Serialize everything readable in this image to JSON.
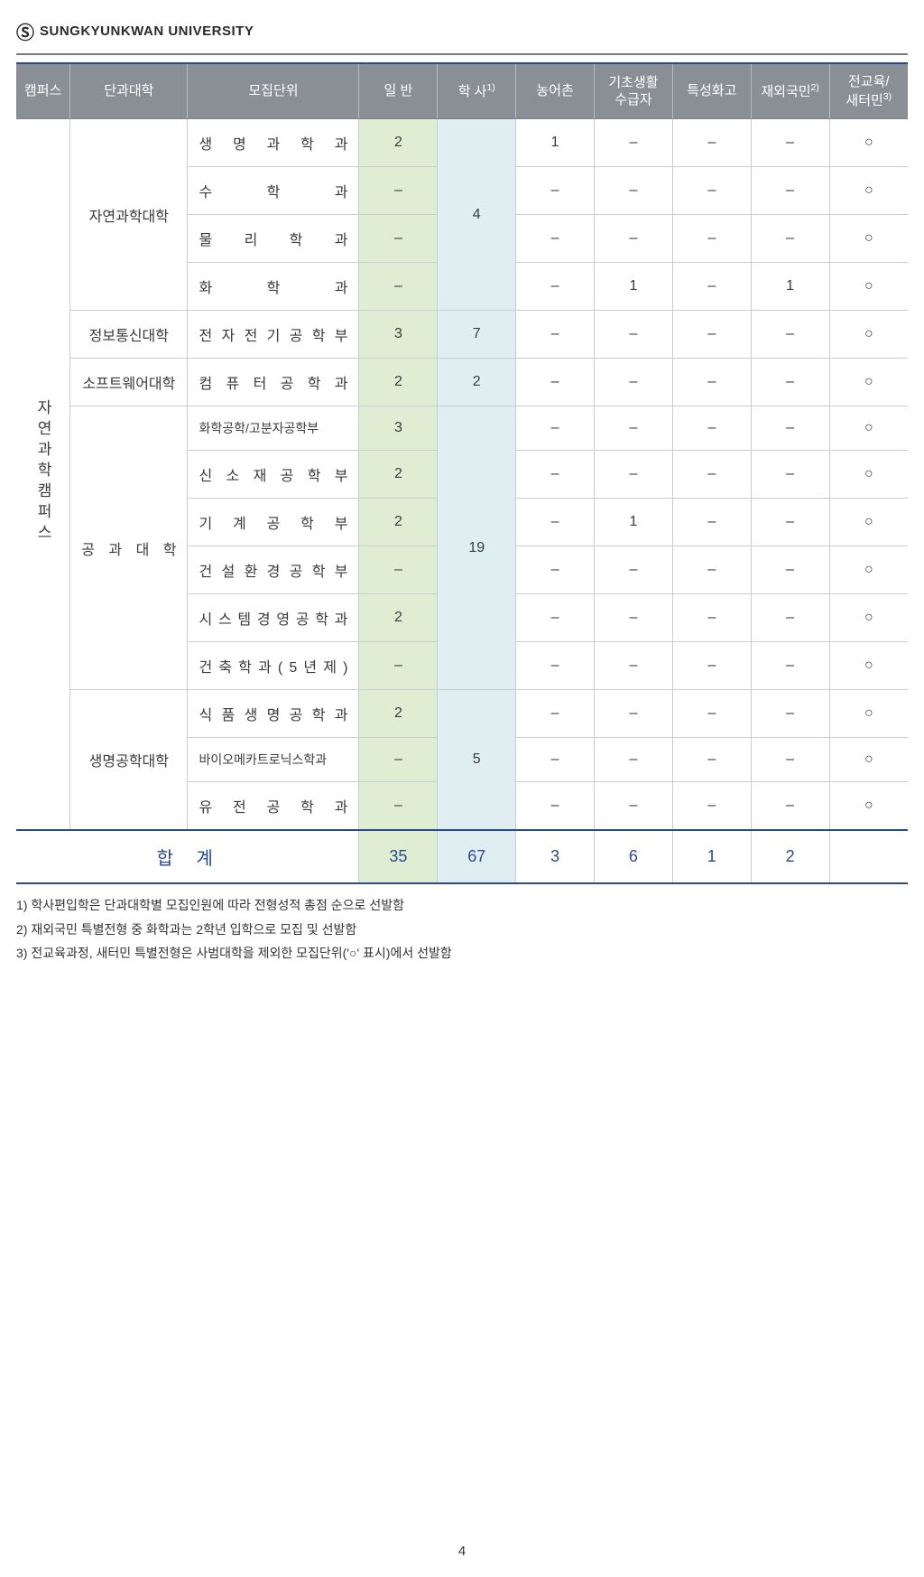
{
  "header": {
    "logo_glyph": "Ⓢ",
    "university": "SUNGKYUNKWAN UNIVERSITY"
  },
  "columns": {
    "campus": "캠퍼스",
    "college": "단과대학",
    "dept": "모집단위",
    "general": "일 반",
    "haksa": "학 사",
    "haksa_sup": "1)",
    "nongeo": "농어촌",
    "basic": "기초생활\n수급자",
    "special_hs": "특성화고",
    "overseas": "재외국민",
    "overseas_sup": "2)",
    "jeongyo": "전교육/\n새터민",
    "jeongyo_sup": "3)"
  },
  "campus": "자연과학캠퍼스",
  "groups": [
    {
      "college": "자연과학대학",
      "haksa_merge": "4",
      "rows": [
        {
          "dept": "생 명 과 학 과",
          "general": "2",
          "nongeo": "1",
          "basic": "–",
          "special": "–",
          "overseas": "–",
          "jeongyo": "○"
        },
        {
          "dept": "수 학 과",
          "general": "–",
          "nongeo": "–",
          "basic": "–",
          "special": "–",
          "overseas": "–",
          "jeongyo": "○"
        },
        {
          "dept": "물 리 학 과",
          "general": "–",
          "nongeo": "–",
          "basic": "–",
          "special": "–",
          "overseas": "–",
          "jeongyo": "○"
        },
        {
          "dept": "화 학 과",
          "general": "–",
          "nongeo": "–",
          "basic": "1",
          "special": "–",
          "overseas": "1",
          "jeongyo": "○"
        }
      ]
    },
    {
      "college": "정보통신대학",
      "haksa_merge": "7",
      "rows": [
        {
          "dept": "전 자 전 기 공 학 부",
          "general": "3",
          "nongeo": "–",
          "basic": "–",
          "special": "–",
          "overseas": "–",
          "jeongyo": "○"
        }
      ]
    },
    {
      "college": "소프트웨어대학",
      "haksa_merge": "2",
      "rows": [
        {
          "dept": "컴 퓨 터 공 학 과",
          "general": "2",
          "nongeo": "–",
          "basic": "–",
          "special": "–",
          "overseas": "–",
          "jeongyo": "○"
        }
      ]
    },
    {
      "college": "공 과 대 학",
      "college_justify": true,
      "haksa_merge": "19",
      "rows": [
        {
          "dept": "화학공학/고분자공학부",
          "small": true,
          "general": "3",
          "nongeo": "–",
          "basic": "–",
          "special": "–",
          "overseas": "–",
          "jeongyo": "○"
        },
        {
          "dept": "신 소 재 공 학 부",
          "general": "2",
          "nongeo": "–",
          "basic": "–",
          "special": "–",
          "overseas": "–",
          "jeongyo": "○"
        },
        {
          "dept": "기 계 공 학 부",
          "general": "2",
          "nongeo": "–",
          "basic": "1",
          "special": "–",
          "overseas": "–",
          "jeongyo": "○"
        },
        {
          "dept": "건 설 환 경 공 학 부",
          "general": "–",
          "nongeo": "–",
          "basic": "–",
          "special": "–",
          "overseas": "–",
          "jeongyo": "○"
        },
        {
          "dept": "시 스 템 경 영 공 학 과",
          "general": "2",
          "nongeo": "–",
          "basic": "–",
          "special": "–",
          "overseas": "–",
          "jeongyo": "○"
        },
        {
          "dept": "건 축 학 과 ( 5 년 제 )",
          "general": "–",
          "nongeo": "–",
          "basic": "–",
          "special": "–",
          "overseas": "–",
          "jeongyo": "○"
        }
      ]
    },
    {
      "college": "생명공학대학",
      "haksa_merge": "5",
      "rows": [
        {
          "dept": "식 품 생 명 공 학 과",
          "general": "2",
          "nongeo": "–",
          "basic": "–",
          "special": "–",
          "overseas": "–",
          "jeongyo": "○"
        },
        {
          "dept": "바이오메카트로닉스학과",
          "small": true,
          "general": "–",
          "nongeo": "–",
          "basic": "–",
          "special": "–",
          "overseas": "–",
          "jeongyo": "○"
        },
        {
          "dept": "유 전 공 학 과",
          "general": "–",
          "nongeo": "–",
          "basic": "–",
          "special": "–",
          "overseas": "–",
          "jeongyo": "○"
        }
      ]
    }
  ],
  "total": {
    "label": "합 계",
    "general": "35",
    "haksa": "67",
    "nongeo": "3",
    "basic": "6",
    "special": "1",
    "overseas": "2",
    "jeongyo": ""
  },
  "footnotes": [
    "1) 학사편입학은 단과대학별 모집인원에 따라 전형성적 총점 순으로 선발함",
    "2) 재외국민 특별전형 중 화학과는 2학년 입학으로 모집 및 선발함",
    "3) 전교육과정, 새터민 특별전형은 사범대학을 제외한 모집단위('○' 표시)에서 선발함"
  ],
  "page_number": "4",
  "style": {
    "header_bg": "#8a8f96",
    "header_text": "#ffffff",
    "border_color": "#c9cdd3",
    "accent_blue": "#2b4a8c",
    "col_green": "#dfeed3",
    "col_blue": "#e1eef1",
    "circle": "○",
    "dash": "–"
  },
  "col_widths": {
    "campus": "5.5%",
    "college": "12%",
    "dept": "17.5%",
    "general": "8%",
    "haksa": "8%",
    "nongeo": "8%",
    "basic": "8%",
    "special": "8%",
    "overseas": "8%",
    "jeongyo": "8%"
  }
}
